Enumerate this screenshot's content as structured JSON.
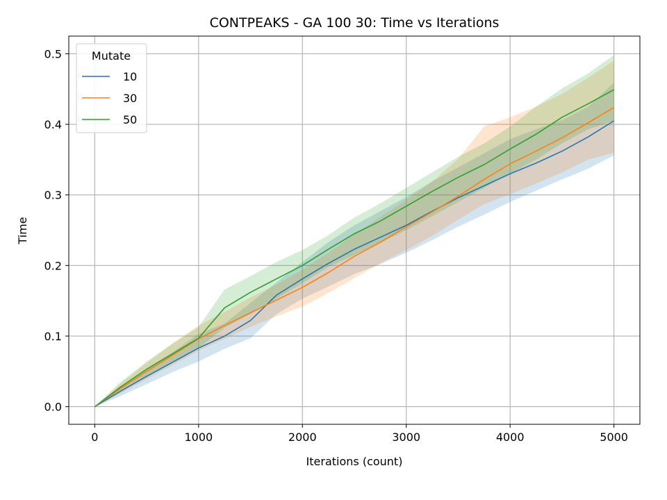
{
  "chart_data": {
    "type": "line",
    "title": "CONTPEAKS - GA 100 30: Time vs Iterations",
    "xlabel": "Iterations (count)",
    "ylabel": "Time",
    "xlim": [
      -250,
      5250
    ],
    "ylim": [
      -0.025,
      0.525
    ],
    "xticks": [
      "0",
      "1000",
      "2000",
      "3000",
      "4000",
      "5000"
    ],
    "yticks": [
      "0.0",
      "0.1",
      "0.2",
      "0.3",
      "0.4",
      "0.5"
    ],
    "grid": true,
    "legend": {
      "title": "Mutate",
      "placement": "top-left"
    },
    "x": [
      0,
      250,
      500,
      750,
      1000,
      1250,
      1500,
      1750,
      2000,
      2250,
      2500,
      2750,
      3000,
      3250,
      3500,
      3750,
      4000,
      4250,
      4500,
      4750,
      5000
    ],
    "series": [
      {
        "name": "10",
        "color": "#1f77b4",
        "values": [
          0.0,
          0.022,
          0.043,
          0.063,
          0.083,
          0.1,
          0.122,
          0.158,
          0.181,
          0.203,
          0.223,
          0.24,
          0.257,
          0.277,
          0.296,
          0.313,
          0.33,
          0.345,
          0.362,
          0.382,
          0.405
        ],
        "lower": [
          0.0,
          0.015,
          0.032,
          0.049,
          0.064,
          0.082,
          0.097,
          0.131,
          0.153,
          0.17,
          0.188,
          0.202,
          0.218,
          0.236,
          0.255,
          0.272,
          0.29,
          0.306,
          0.322,
          0.337,
          0.356
        ],
        "upper": [
          0.0,
          0.028,
          0.054,
          0.077,
          0.103,
          0.118,
          0.147,
          0.176,
          0.205,
          0.233,
          0.257,
          0.277,
          0.297,
          0.319,
          0.339,
          0.359,
          0.379,
          0.393,
          0.406,
          0.425,
          0.459
        ]
      },
      {
        "name": "30",
        "color": "#ff7f0e",
        "values": [
          0.0,
          0.026,
          0.05,
          0.073,
          0.096,
          0.115,
          0.133,
          0.151,
          0.169,
          0.19,
          0.213,
          0.233,
          0.255,
          0.276,
          0.298,
          0.322,
          0.344,
          0.362,
          0.381,
          0.402,
          0.424
        ],
        "lower": [
          0.0,
          0.019,
          0.039,
          0.059,
          0.079,
          0.096,
          0.113,
          0.128,
          0.142,
          0.161,
          0.182,
          0.203,
          0.222,
          0.242,
          0.265,
          0.287,
          0.301,
          0.316,
          0.332,
          0.35,
          0.36
        ],
        "upper": [
          0.0,
          0.033,
          0.062,
          0.09,
          0.115,
          0.134,
          0.155,
          0.173,
          0.194,
          0.218,
          0.244,
          0.269,
          0.293,
          0.319,
          0.351,
          0.397,
          0.41,
          0.425,
          0.443,
          0.466,
          0.49
        ]
      },
      {
        "name": "50",
        "color": "#2ca02c",
        "values": [
          0.0,
          0.028,
          0.053,
          0.075,
          0.097,
          0.14,
          0.162,
          0.181,
          0.2,
          0.223,
          0.245,
          0.263,
          0.284,
          0.305,
          0.325,
          0.343,
          0.365,
          0.386,
          0.41,
          0.429,
          0.449
        ],
        "lower": [
          0.0,
          0.021,
          0.043,
          0.063,
          0.083,
          0.112,
          0.131,
          0.153,
          0.175,
          0.198,
          0.215,
          0.232,
          0.25,
          0.27,
          0.29,
          0.31,
          0.33,
          0.35,
          0.373,
          0.393,
          0.405
        ],
        "upper": [
          0.0,
          0.035,
          0.064,
          0.089,
          0.113,
          0.166,
          0.185,
          0.205,
          0.222,
          0.243,
          0.268,
          0.288,
          0.31,
          0.332,
          0.354,
          0.373,
          0.397,
          0.425,
          0.451,
          0.472,
          0.498
        ]
      }
    ]
  }
}
